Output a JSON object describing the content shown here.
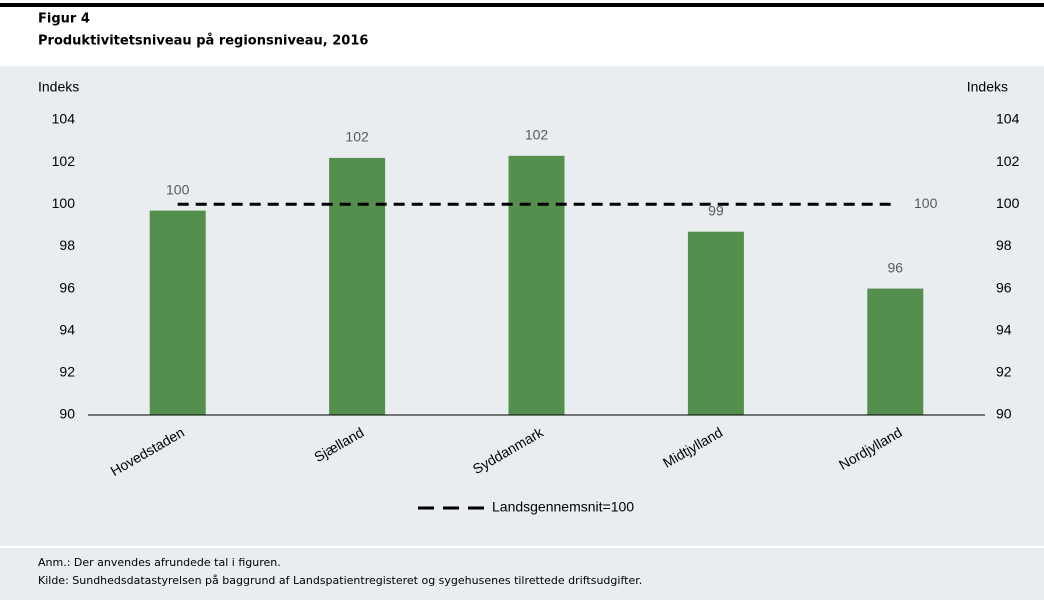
{
  "chart_data": {
    "type": "bar",
    "figure_label": "Figur 4",
    "title": "Produktivitetsniveau på regionsniveau, 2016",
    "y_axis_label": "Indeks",
    "y2_axis_label": "Indeks",
    "categories": [
      "Hovedstaden",
      "Sjælland",
      "Syddanmark",
      "Midtjylland",
      "Nordjylland"
    ],
    "values": [
      99.7,
      102.2,
      102.3,
      98.7,
      96.0
    ],
    "value_labels": [
      "100",
      "102",
      "102",
      "99",
      "96"
    ],
    "color": "#548f4d",
    "ylim": [
      90,
      104
    ],
    "yticks": [
      90,
      92,
      94,
      96,
      98,
      100,
      102,
      104
    ],
    "y2lim": [
      90,
      104
    ],
    "y2ticks": [
      90,
      92,
      94,
      96,
      98,
      100,
      102,
      104
    ],
    "reference_line": {
      "name": "Landsgennemsnit=100",
      "value": 100,
      "color": "#000000"
    },
    "notes": [
      "Anm.:  Der anvendes afrundede tal i figuren.",
      "Kilde:  Sundhedsdatastyrelsen på baggrund af Landspatientregisteret og sygehusenes tilrettede driftsudgifter."
    ]
  }
}
